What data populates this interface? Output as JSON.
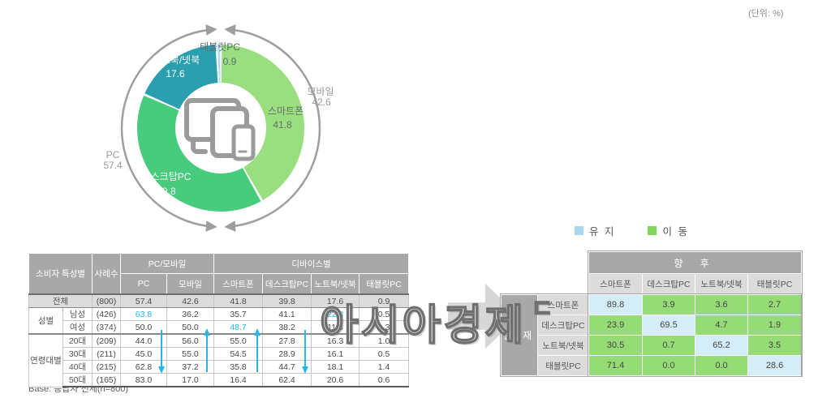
{
  "unit_label": "(단위: %)",
  "watermark": {
    "text": "아시아경제",
    "mark": "ㄷ"
  },
  "colors": {
    "accent": "#2CB3E8",
    "keep_cell": "#D5EDF9",
    "move_cell": "#95DC76",
    "legend_keep": "#ABD7EF",
    "legend_move": "#7FD65C",
    "header_gray": "#A8A8A8",
    "subhead_gray": "#DCDCDC"
  },
  "chart_data": {
    "type": "pie",
    "style": "donut",
    "unit": "%",
    "segments": [
      {
        "label": "스마트폰",
        "value": 41.8,
        "color": "#9ADF7F",
        "group": "모바일"
      },
      {
        "label": "데스크탑PC",
        "value": 39.8,
        "color": "#47CB7D",
        "group": "PC"
      },
      {
        "label": "노트북/넷북",
        "value": 17.6,
        "color": "#2B9FB0",
        "group": "PC"
      },
      {
        "label": "태블릿PC",
        "value": 0.9,
        "color": "#ABDCF2",
        "group": "모바일"
      }
    ],
    "group_labels": [
      {
        "label": "모바일",
        "value": 42.6
      },
      {
        "label": "PC",
        "value": 57.4
      }
    ],
    "center_icon": "devices-icon",
    "legend_position": "labels-on-chart"
  },
  "left_table": {
    "col_headers": {
      "consumer": "소비자 특성별",
      "cases": "사례수",
      "group_pc_mobile": "PC/모바일",
      "group_device": "디바이스별",
      "sub": [
        "PC",
        "모바일",
        "스마트폰",
        "데스크탑PC",
        "노트북/넷북",
        "태블릿PC"
      ]
    },
    "rows": [
      {
        "group": "전체",
        "label": "",
        "n": "(800)",
        "values": [
          "57.4",
          "42.6",
          "41.8",
          "39.8",
          "17.6",
          "0.9"
        ]
      },
      {
        "group": "성별",
        "label": "남성",
        "n": "(426)",
        "values": [
          "63.8",
          "36.2",
          "35.7",
          "41.1",
          "22.8",
          "0.5"
        ]
      },
      {
        "group": "",
        "label": "여성",
        "n": "(374)",
        "values": [
          "50.0",
          "50.0",
          "48.7",
          "38.2",
          "11.8",
          "1.3"
        ]
      },
      {
        "group": "연령대별",
        "label": "20대",
        "n": "(209)",
        "values": [
          "44.0",
          "56.0",
          "55.0",
          "27.8",
          "16.3",
          "1.0"
        ]
      },
      {
        "group": "",
        "label": "30대",
        "n": "(211)",
        "values": [
          "45.0",
          "55.0",
          "54.5",
          "28.9",
          "16.1",
          "0.5"
        ]
      },
      {
        "group": "",
        "label": "40대",
        "n": "(215)",
        "values": [
          "62.8",
          "37.2",
          "35.8",
          "44.7",
          "18.1",
          "1.4"
        ]
      },
      {
        "group": "",
        "label": "50대",
        "n": "(165)",
        "values": [
          "83.0",
          "17.0",
          "16.4",
          "62.4",
          "20.6",
          "0.6"
        ]
      }
    ],
    "base_note": "Base: 응답자 전체(n=800)"
  },
  "flow_matrix": {
    "legend": [
      {
        "label": "유 지"
      },
      {
        "label": "이 동"
      }
    ],
    "col_group": "향 후",
    "row_group": "현 재",
    "columns": [
      "스마트폰",
      "데스크탑PC",
      "노트북/넷북",
      "태블릿PC"
    ],
    "rows": [
      {
        "label": "스마트폰",
        "values": [
          "89.8",
          "3.9",
          "3.6",
          "2.7"
        ]
      },
      {
        "label": "데스크탑PC",
        "values": [
          "23.9",
          "69.5",
          "4.7",
          "1.9"
        ]
      },
      {
        "label": "노트북/넷북",
        "values": [
          "30.5",
          "0.7",
          "65.2",
          "3.5"
        ]
      },
      {
        "label": "태블릿PC",
        "values": [
          "71.4",
          "0.0",
          "0.0",
          "28.6"
        ]
      }
    ]
  }
}
